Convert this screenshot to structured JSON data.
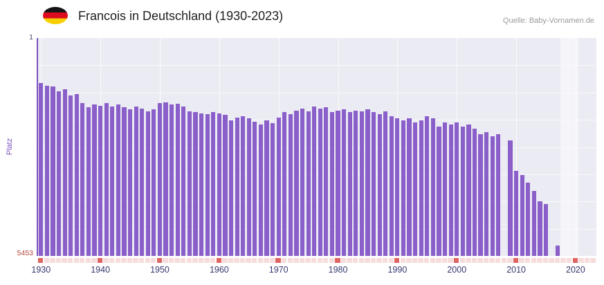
{
  "title": "Francois in Deutschland (1930-2023)",
  "source": "Quelle: Baby-Vornamen.de",
  "y_axis": {
    "title": "Platz",
    "top_label": "1",
    "bottom_label": "5453"
  },
  "x_ticks": [
    "1930",
    "1940",
    "1950",
    "1960",
    "1970",
    "1980",
    "1990",
    "2000",
    "2010",
    "2020"
  ],
  "colors": {
    "bar": "#8b5fc9",
    "plot_bg": "#ebebf3",
    "band_bg": "#f4f4f9",
    "axis_line": "#7a52bd",
    "axis_title": "#7a52bd",
    "strip": "#f7dcdc",
    "strip_decade": "#df6360",
    "x_label": "#34386d",
    "y_top_label": "#4a4a6a",
    "y_bottom_label": "#b5433c",
    "source": "#9a9a9a"
  },
  "chart_data": {
    "type": "bar",
    "title": "Francois in Deutschland (1930-2023)",
    "xlabel": "",
    "ylabel": "Platz",
    "ylim": [
      1,
      5453
    ],
    "y_inverted": true,
    "legend": "none",
    "grid": "on",
    "start_year": 1930,
    "end_year": 2023,
    "no_data_band": {
      "from": 2018,
      "to": 2020
    },
    "x": [
      1930,
      1931,
      1932,
      1933,
      1934,
      1935,
      1936,
      1937,
      1938,
      1939,
      1940,
      1941,
      1942,
      1943,
      1944,
      1945,
      1946,
      1947,
      1948,
      1949,
      1950,
      1951,
      1952,
      1953,
      1954,
      1955,
      1956,
      1957,
      1958,
      1959,
      1960,
      1961,
      1962,
      1963,
      1964,
      1965,
      1966,
      1967,
      1968,
      1969,
      1970,
      1971,
      1972,
      1973,
      1974,
      1975,
      1976,
      1977,
      1978,
      1979,
      1980,
      1981,
      1982,
      1983,
      1984,
      1985,
      1986,
      1987,
      1988,
      1989,
      1990,
      1991,
      1992,
      1993,
      1994,
      1995,
      1996,
      1997,
      1998,
      1999,
      2000,
      2001,
      2002,
      2003,
      2004,
      2005,
      2006,
      2007,
      2008,
      2009,
      2010,
      2011,
      2012,
      2013,
      2014,
      2015,
      2016,
      2017,
      2018,
      2019,
      2020,
      2021,
      2022,
      2023
    ],
    "values": [
      1120,
      1190,
      1220,
      1340,
      1290,
      1430,
      1400,
      1620,
      1730,
      1660,
      1690,
      1630,
      1710,
      1660,
      1730,
      1790,
      1710,
      1770,
      1830,
      1790,
      1630,
      1610,
      1660,
      1640,
      1710,
      1830,
      1860,
      1880,
      1910,
      1860,
      1890,
      1930,
      2060,
      1990,
      1960,
      2010,
      2090,
      2160,
      2060,
      2130,
      1990,
      1860,
      1910,
      1810,
      1760,
      1830,
      1710,
      1760,
      1730,
      1860,
      1810,
      1790,
      1860,
      1810,
      1830,
      1790,
      1860,
      1910,
      1830,
      1960,
      2010,
      2060,
      2010,
      2110,
      2060,
      1960,
      2010,
      2210,
      2110,
      2160,
      2110,
      2210,
      2160,
      2260,
      2410,
      2360,
      2460,
      2410,
      null,
      2560,
      3320,
      3420,
      3620,
      3820,
      4080,
      4150,
      null,
      5200,
      null,
      null,
      null,
      null,
      null,
      null
    ]
  }
}
